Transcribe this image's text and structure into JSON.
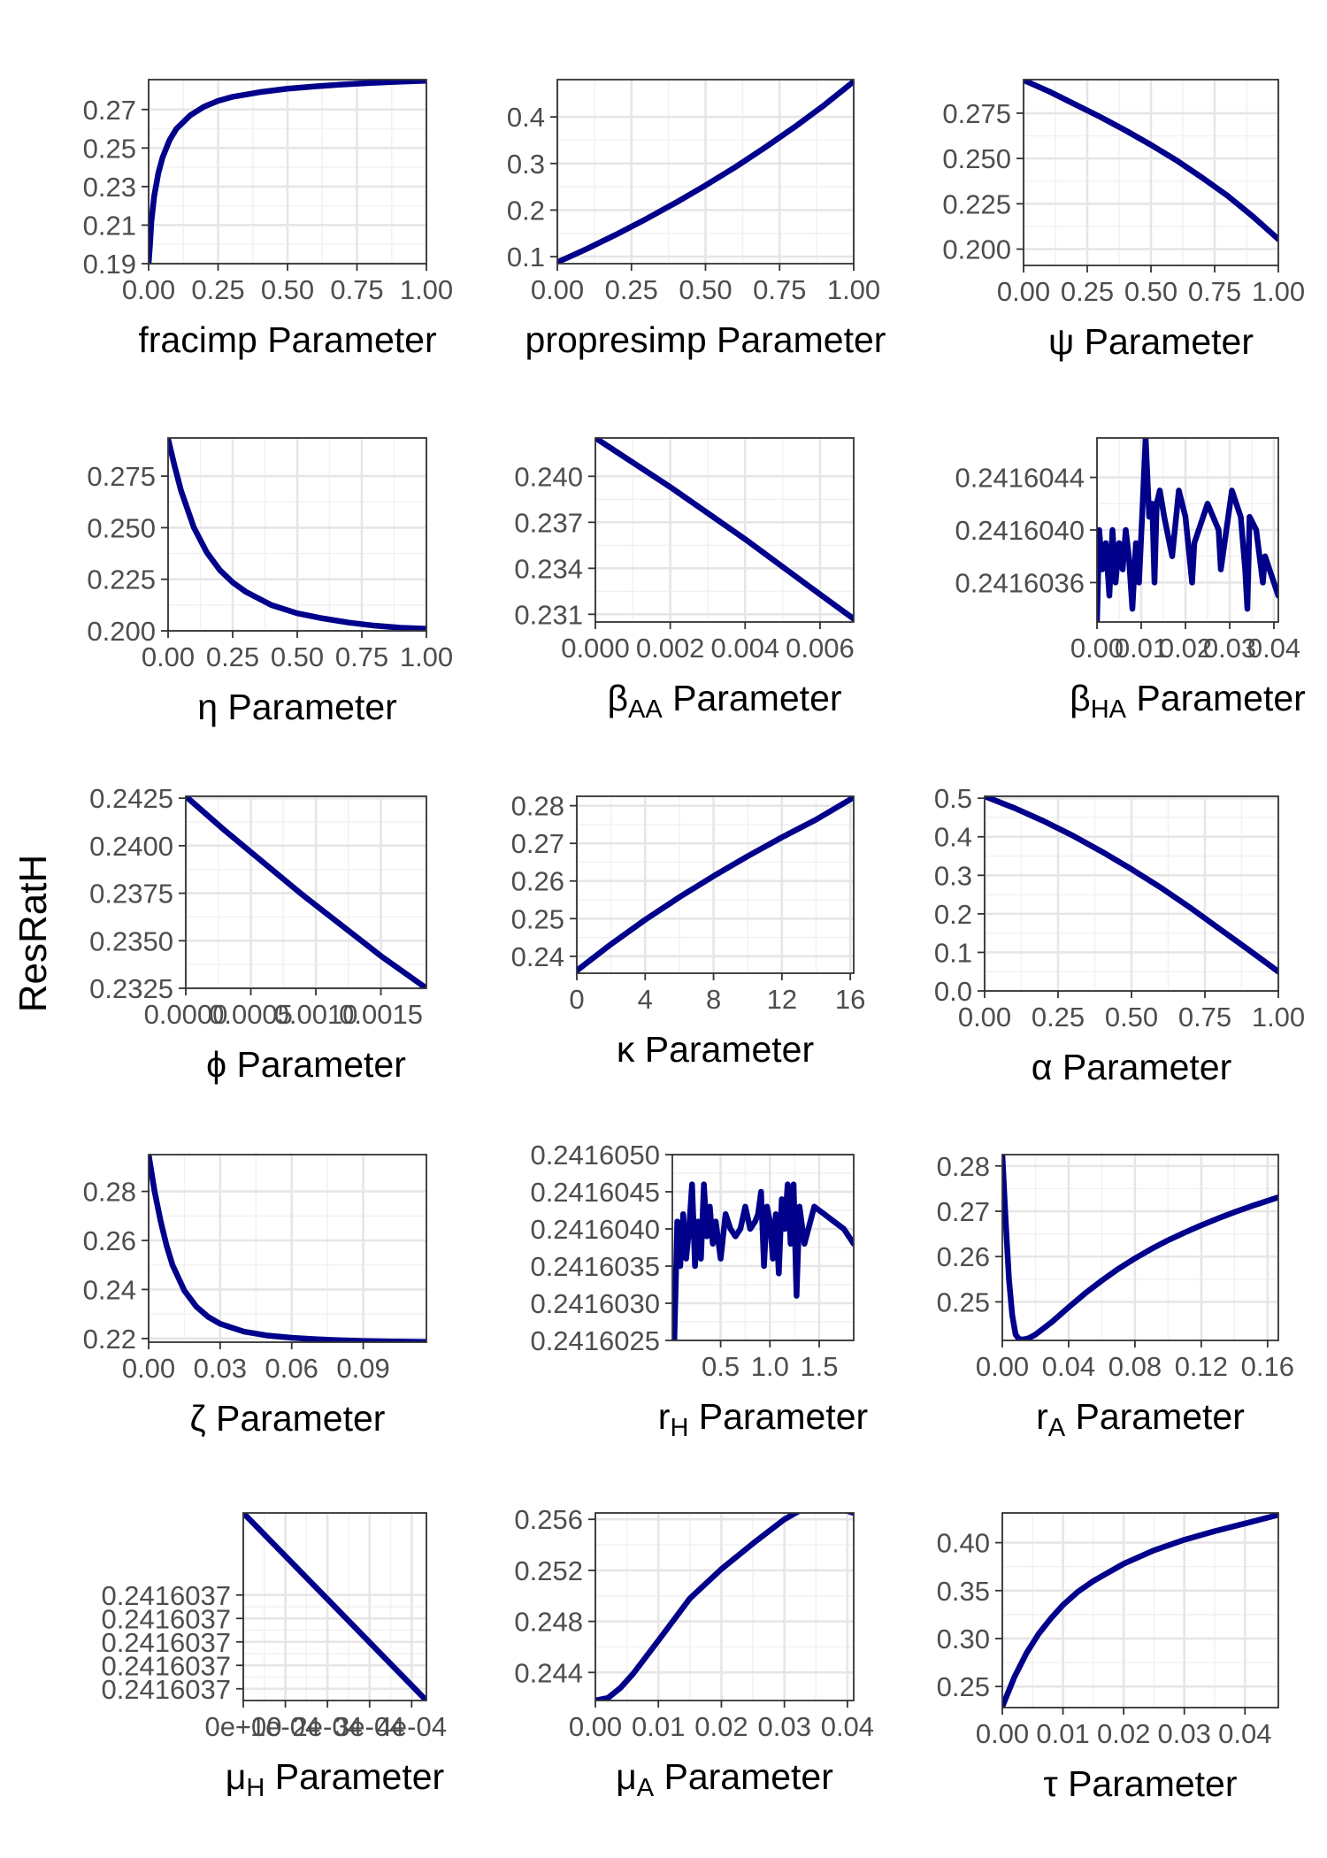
{
  "y_label": "ResRatH",
  "colors": {
    "series": "#00008B",
    "grid": "#e6e6e6",
    "frame": "#333333",
    "tick_text": "#4d4d4d"
  },
  "chart_data": [
    {
      "type": "line",
      "xlabel": "fracimp Parameter",
      "xlim": [
        0,
        1
      ],
      "ylim": [
        0.19,
        0.2855
      ],
      "xticks": [
        0,
        0.25,
        0.5,
        0.75,
        1
      ],
      "xtick_labels": [
        "0.00",
        "0.25",
        "0.50",
        "0.75",
        "1.00"
      ],
      "yticks": [
        0.19,
        0.21,
        0.23,
        0.25,
        0.27
      ],
      "ytick_labels": [
        "0.19",
        "0.21",
        "0.23",
        "0.25",
        "0.27"
      ],
      "x": [
        0,
        0.005,
        0.01,
        0.02,
        0.035,
        0.05,
        0.075,
        0.1,
        0.15,
        0.2,
        0.25,
        0.3,
        0.4,
        0.5,
        0.6,
        0.7,
        0.8,
        0.9,
        1.0
      ],
      "y": [
        0.19,
        0.2,
        0.212,
        0.225,
        0.237,
        0.245,
        0.254,
        0.26,
        0.267,
        0.2715,
        0.2745,
        0.2765,
        0.279,
        0.2808,
        0.282,
        0.283,
        0.2838,
        0.2844,
        0.2849
      ]
    },
    {
      "type": "line",
      "xlabel": "propresimp Parameter",
      "xlim": [
        0,
        1
      ],
      "ylim": [
        0.085,
        0.48
      ],
      "xticks": [
        0,
        0.25,
        0.5,
        0.75,
        1
      ],
      "xtick_labels": [
        "0.00",
        "0.25",
        "0.50",
        "0.75",
        "1.00"
      ],
      "yticks": [
        0.1,
        0.2,
        0.3,
        0.4
      ],
      "ytick_labels": [
        "0.1",
        "0.2",
        "0.3",
        "0.4"
      ],
      "x": [
        0,
        0.1,
        0.2,
        0.3,
        0.4,
        0.5,
        0.6,
        0.7,
        0.8,
        0.9,
        1.0
      ],
      "y": [
        0.088,
        0.117,
        0.148,
        0.181,
        0.216,
        0.253,
        0.292,
        0.334,
        0.378,
        0.425,
        0.476
      ]
    },
    {
      "type": "line",
      "xlabel": "ψ Parameter",
      "xlim": [
        0,
        1
      ],
      "ylim": [
        0.191,
        0.2935
      ],
      "xticks": [
        0,
        0.25,
        0.5,
        0.75,
        1
      ],
      "xtick_labels": [
        "0.00",
        "0.25",
        "0.50",
        "0.75",
        "1.00"
      ],
      "yticks": [
        0.2,
        0.225,
        0.25,
        0.275
      ],
      "ytick_labels": [
        "0.200",
        "0.225",
        "0.250",
        "0.275"
      ],
      "x": [
        0,
        0.1,
        0.2,
        0.3,
        0.4,
        0.5,
        0.6,
        0.7,
        0.8,
        0.9,
        1.0
      ],
      "y": [
        0.2932,
        0.287,
        0.28,
        0.273,
        0.2655,
        0.2575,
        0.249,
        0.2395,
        0.2295,
        0.218,
        0.2055
      ]
    },
    {
      "type": "line",
      "xlabel": "η Parameter",
      "xlim": [
        0,
        1
      ],
      "ylim": [
        0.2,
        0.2935
      ],
      "xticks": [
        0,
        0.25,
        0.5,
        0.75,
        1
      ],
      "xtick_labels": [
        "0.00",
        "0.25",
        "0.50",
        "0.75",
        "1.00"
      ],
      "yticks": [
        0.2,
        0.225,
        0.25,
        0.275
      ],
      "ytick_labels": [
        "0.200",
        "0.225",
        "0.250",
        "0.275"
      ],
      "x": [
        0,
        0.025,
        0.05,
        0.1,
        0.15,
        0.2,
        0.25,
        0.3,
        0.4,
        0.5,
        0.6,
        0.7,
        0.8,
        0.9,
        1.0
      ],
      "y": [
        0.293,
        0.28,
        0.268,
        0.25,
        0.238,
        0.2295,
        0.2235,
        0.219,
        0.2125,
        0.2085,
        0.206,
        0.204,
        0.2025,
        0.2015,
        0.201
      ]
    },
    {
      "type": "line",
      "xlabel": "βAA Parameter",
      "xlim": [
        0,
        0.0069
      ],
      "ylim": [
        0.2305,
        0.2425
      ],
      "xticks": [
        0,
        0.002,
        0.004,
        0.006
      ],
      "xtick_labels": [
        "0.000",
        "0.002",
        "0.004",
        "0.006"
      ],
      "yticks": [
        0.231,
        0.234,
        0.237,
        0.24
      ],
      "ytick_labels": [
        "0.231",
        "0.234",
        "0.237",
        "0.240"
      ],
      "x": [
        0,
        0.001,
        0.002,
        0.003,
        0.004,
        0.005,
        0.006,
        0.0069
      ],
      "y": [
        0.2425,
        0.2409,
        0.2393,
        0.2376,
        0.2359,
        0.2341,
        0.2323,
        0.2307
      ]
    },
    {
      "type": "line",
      "xlabel": "βHA Parameter",
      "xlim": [
        0,
        0.041
      ],
      "ylim": [
        0.2416033,
        0.2416047
      ],
      "xticks": [
        0,
        0.01,
        0.02,
        0.03,
        0.04
      ],
      "xtick_labels": [
        "0.00",
        "0.01",
        "0.02",
        "0.03",
        "0.04"
      ],
      "yticks": [
        0.2416036,
        0.241604,
        0.2416044
      ],
      "ytick_labels": [
        "0.2416036",
        "0.2416040",
        "0.2416044"
      ],
      "x": [
        0,
        0.0005,
        0.0012,
        0.002,
        0.0028,
        0.0035,
        0.0042,
        0.005,
        0.0058,
        0.0065,
        0.0072,
        0.008,
        0.0088,
        0.0095,
        0.0102,
        0.011,
        0.0118,
        0.0125,
        0.013,
        0.0135,
        0.0142,
        0.0152,
        0.017,
        0.0185,
        0.02,
        0.0215,
        0.022,
        0.025,
        0.0275,
        0.028,
        0.0305,
        0.0325,
        0.0335,
        0.034,
        0.0345,
        0.036,
        0.0375,
        0.038,
        0.041
      ],
      "y": [
        0.2416033,
        0.241604,
        0.2416037,
        0.2416039,
        0.2416035,
        0.241604,
        0.2416036,
        0.2416039,
        0.2416037,
        0.241604,
        0.2416038,
        0.2416034,
        0.2416039,
        0.2416036,
        0.2416041,
        0.2416047,
        0.2416041,
        0.2416042,
        0.2416036,
        0.2416042,
        0.2416043,
        0.2416041,
        0.2416038,
        0.2416043,
        0.2416041,
        0.2416036,
        0.2416039,
        0.2416042,
        0.241604,
        0.2416037,
        0.2416043,
        0.2416041,
        0.2416037,
        0.2416034,
        0.2416041,
        0.241604,
        0.2416036,
        0.2416038,
        0.2416035
      ]
    },
    {
      "type": "line",
      "xlabel": "ϕ Parameter",
      "xlim": [
        0,
        0.00185
      ],
      "ylim": [
        0.2325,
        0.2426
      ],
      "xticks": [
        0,
        0.0005,
        0.001,
        0.0015
      ],
      "xtick_labels": [
        "0.0000",
        "0.0005",
        "0.0010",
        "0.0015"
      ],
      "yticks": [
        0.2325,
        0.235,
        0.2375,
        0.24,
        0.2425
      ],
      "ytick_labels": [
        "0.2325",
        "0.2350",
        "0.2375",
        "0.2400",
        "0.2425"
      ],
      "x": [
        0,
        0.0003,
        0.0006,
        0.0009,
        0.0012,
        0.0015,
        0.00185
      ],
      "y": [
        0.2426,
        0.2408,
        0.2391,
        0.2374,
        0.2358,
        0.2342,
        0.2325
      ]
    },
    {
      "type": "line",
      "xlabel": "κ Parameter",
      "xlim": [
        0,
        16.2
      ],
      "ylim": [
        0.2355,
        0.2825
      ],
      "xticks": [
        0,
        4,
        8,
        12,
        16
      ],
      "xtick_labels": [
        "0",
        "4",
        "8",
        "12",
        "16"
      ],
      "yticks": [
        0.24,
        0.25,
        0.26,
        0.27,
        0.28
      ],
      "ytick_labels": [
        "0.24",
        "0.25",
        "0.26",
        "0.27",
        "0.28"
      ],
      "x": [
        0,
        2,
        4,
        6,
        8,
        10,
        12,
        14,
        16.2
      ],
      "y": [
        0.2362,
        0.2432,
        0.2497,
        0.2557,
        0.2613,
        0.2666,
        0.2716,
        0.2763,
        0.2822
      ]
    },
    {
      "type": "line",
      "xlabel": "α Parameter",
      "xlim": [
        0,
        1
      ],
      "ylim": [
        0,
        0.505
      ],
      "xticks": [
        0,
        0.25,
        0.5,
        0.75,
        1
      ],
      "xtick_labels": [
        "0.00",
        "0.25",
        "0.50",
        "0.75",
        "1.00"
      ],
      "yticks": [
        0,
        0.1,
        0.2,
        0.3,
        0.4,
        0.5
      ],
      "ytick_labels": [
        "0.0",
        "0.1",
        "0.2",
        "0.3",
        "0.4",
        "0.5"
      ],
      "x": [
        0,
        0.1,
        0.2,
        0.3,
        0.4,
        0.5,
        0.6,
        0.7,
        0.8,
        0.9,
        1.0
      ],
      "y": [
        0.505,
        0.475,
        0.441,
        0.403,
        0.361,
        0.316,
        0.268,
        0.216,
        0.161,
        0.106,
        0.05
      ]
    },
    {
      "type": "line",
      "xlabel": "ζ Parameter",
      "xlim": [
        0,
        0.1165
      ],
      "ylim": [
        0.2185,
        0.295
      ],
      "xticks": [
        0,
        0.03,
        0.06,
        0.09
      ],
      "xtick_labels": [
        "0.00",
        "0.03",
        "0.06",
        "0.09"
      ],
      "yticks": [
        0.22,
        0.24,
        0.26,
        0.28
      ],
      "ytick_labels": [
        "0.22",
        "0.24",
        "0.26",
        "0.28"
      ],
      "x": [
        0,
        0.0025,
        0.005,
        0.0075,
        0.01,
        0.015,
        0.02,
        0.025,
        0.03,
        0.04,
        0.05,
        0.06,
        0.07,
        0.08,
        0.09,
        0.1,
        0.1165
      ],
      "y": [
        0.295,
        0.28,
        0.268,
        0.258,
        0.25,
        0.2395,
        0.233,
        0.2288,
        0.226,
        0.2228,
        0.2212,
        0.2203,
        0.2197,
        0.2193,
        0.219,
        0.2188,
        0.2186
      ]
    },
    {
      "type": "line",
      "xlabel": "rH Parameter",
      "xlim": [
        0.01,
        1.85
      ],
      "ylim": [
        0.2416025,
        0.241605
      ],
      "xticks": [
        0.5,
        1.0,
        1.5
      ],
      "xtick_labels": [
        "0.5",
        "1.0",
        "1.5"
      ],
      "yticks": [
        0.2416025,
        0.241603,
        0.2416035,
        0.241604,
        0.2416045,
        0.241605
      ],
      "ytick_labels": [
        "0.2416025",
        "0.2416030",
        "0.2416035",
        "0.2416040",
        "0.2416045",
        "0.2416050"
      ],
      "x": [
        0.03,
        0.06,
        0.09,
        0.12,
        0.15,
        0.18,
        0.21,
        0.24,
        0.27,
        0.3,
        0.33,
        0.36,
        0.39,
        0.42,
        0.45,
        0.5,
        0.55,
        0.6,
        0.65,
        0.7,
        0.75,
        0.8,
        0.85,
        0.88,
        0.91,
        0.94,
        0.97,
        1.0,
        1.03,
        1.06,
        1.09,
        1.12,
        1.15,
        1.18,
        1.21,
        1.24,
        1.27,
        1.3,
        1.35,
        1.45,
        1.55,
        1.65,
        1.75,
        1.85
      ],
      "y": [
        0.2416025,
        0.2416041,
        0.2416035,
        0.2416042,
        0.2416036,
        0.241604,
        0.2416046,
        0.2416035,
        0.2416041,
        0.2416036,
        0.2416046,
        0.2416039,
        0.2416043,
        0.2416038,
        0.2416041,
        0.2416036,
        0.2416042,
        0.241604,
        0.2416039,
        0.241604,
        0.2416043,
        0.241604,
        0.2416041,
        0.2416042,
        0.2416045,
        0.2416035,
        0.2416043,
        0.2416041,
        0.2416036,
        0.2416042,
        0.2416034,
        0.2416044,
        0.241604,
        0.2416046,
        0.2416038,
        0.2416046,
        0.2416031,
        0.2416043,
        0.2416038,
        0.2416043,
        0.2416042,
        0.2416041,
        0.241604,
        0.2416038
      ]
    },
    {
      "type": "line",
      "xlabel": "rA Parameter",
      "xlim": [
        0,
        0.1665
      ],
      "ylim": [
        0.2415,
        0.2825
      ],
      "xticks": [
        0,
        0.04,
        0.08,
        0.12,
        0.16
      ],
      "xtick_labels": [
        "0.00",
        "0.04",
        "0.08",
        "0.12",
        "0.16"
      ],
      "yticks": [
        0.25,
        0.26,
        0.27,
        0.28
      ],
      "ytick_labels": [
        "0.25",
        "0.26",
        "0.27",
        "0.28"
      ],
      "x": [
        0,
        0.002,
        0.004,
        0.006,
        0.008,
        0.01,
        0.012,
        0.014,
        0.016,
        0.02,
        0.025,
        0.03,
        0.04,
        0.05,
        0.06,
        0.07,
        0.08,
        0.09,
        0.1,
        0.11,
        0.12,
        0.13,
        0.14,
        0.15,
        0.16,
        0.1665
      ],
      "y": [
        0.2825,
        0.268,
        0.255,
        0.247,
        0.2428,
        0.2418,
        0.2417,
        0.2418,
        0.242,
        0.2428,
        0.2442,
        0.2456,
        0.2488,
        0.2519,
        0.2547,
        0.2573,
        0.2596,
        0.2617,
        0.2636,
        0.2653,
        0.2669,
        0.2684,
        0.2698,
        0.2711,
        0.2723,
        0.2731
      ]
    },
    {
      "type": "line",
      "xlabel": "μH Parameter",
      "xlim": [
        0,
        0.000435
      ],
      "ylim": [
        0.24160366,
        0.24160374
      ],
      "xticks": [
        0,
        0.0001,
        0.0002,
        0.0003,
        0.0004
      ],
      "xtick_labels": [
        "0e+00",
        "1e-04",
        "2e-04",
        "3e-04",
        "4e-04"
      ],
      "yticks": [
        0.241603665,
        0.241603675,
        0.241603685,
        0.241603695,
        0.241603705
      ],
      "ytick_labels": [
        "0.2416037",
        "0.2416037",
        "0.2416037",
        "0.2416037",
        "0.2416037"
      ],
      "x": [
        0,
        0.000435
      ],
      "y": [
        0.24160374,
        0.24160366
      ]
    },
    {
      "type": "line",
      "xlabel": "μA Parameter",
      "xlim": [
        0,
        0.041
      ],
      "ylim": [
        0.2418,
        0.2565
      ],
      "xticks": [
        0,
        0.01,
        0.02,
        0.03,
        0.04
      ],
      "xtick_labels": [
        "0.00",
        "0.01",
        "0.02",
        "0.03",
        "0.04"
      ],
      "yticks": [
        0.244,
        0.248,
        0.252,
        0.256
      ],
      "ytick_labels": [
        "0.244",
        "0.248",
        "0.252",
        "0.256"
      ],
      "x": [
        0,
        0.002,
        0.004,
        0.006,
        0.008,
        0.01,
        0.015,
        0.02,
        0.025,
        0.03,
        0.035,
        0.041
      ],
      "y": [
        0.2418,
        0.242,
        0.2428,
        0.2439,
        0.2452,
        0.2465,
        0.2498,
        0.2521,
        0.2541,
        0.256,
        0.2574,
        0.2565
      ]
    },
    {
      "type": "line",
      "xlabel": "τ Parameter",
      "xlim": [
        0,
        0.0455
      ],
      "ylim": [
        0.228,
        0.431
      ],
      "xticks": [
        0,
        0.01,
        0.02,
        0.03,
        0.04
      ],
      "xtick_labels": [
        "0.00",
        "0.01",
        "0.02",
        "0.03",
        "0.04"
      ],
      "yticks": [
        0.25,
        0.3,
        0.35,
        0.4
      ],
      "ytick_labels": [
        "0.25",
        "0.30",
        "0.35",
        "0.40"
      ],
      "x": [
        0,
        0.002,
        0.004,
        0.006,
        0.008,
        0.01,
        0.0125,
        0.015,
        0.02,
        0.025,
        0.03,
        0.035,
        0.04,
        0.0455
      ],
      "y": [
        0.229,
        0.26,
        0.285,
        0.305,
        0.321,
        0.335,
        0.349,
        0.36,
        0.378,
        0.392,
        0.403,
        0.412,
        0.42,
        0.429
      ]
    }
  ]
}
